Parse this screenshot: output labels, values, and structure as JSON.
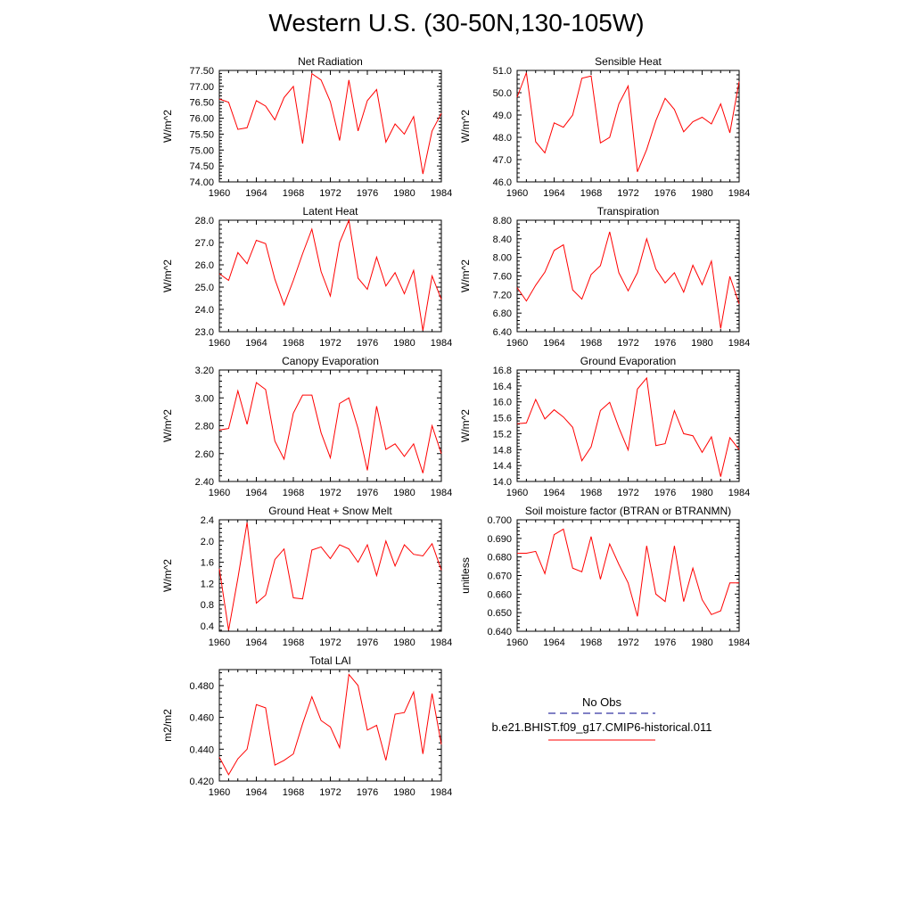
{
  "title": "Western U.S. (30-50N,130-105W)",
  "colors": {
    "model": "#ff0000",
    "obs": "#00008b",
    "axis": "#000000"
  },
  "legend": {
    "entries": [
      {
        "label": "No Obs",
        "color": "#00008b",
        "style": "dashed"
      },
      {
        "label": "b.e21.BHIST.f09_g17.CMIP6-historical.011",
        "color": "#ff0000",
        "style": "solid"
      }
    ]
  },
  "chart_data": [
    {
      "type": "line",
      "title": "Net Radiation",
      "xlabel": "",
      "ylabel": "W/m^2",
      "xlim": [
        1960,
        1984
      ],
      "ylim": [
        74.0,
        77.5
      ],
      "xticks": [
        "1960",
        "1964",
        "1968",
        "1972",
        "1976",
        "1980",
        "1984"
      ],
      "yticks": [
        "74.00",
        "74.50",
        "75.00",
        "75.50",
        "76.00",
        "76.50",
        "77.00",
        "77.50"
      ],
      "x": [
        1960,
        1961,
        1962,
        1963,
        1964,
        1965,
        1966,
        1967,
        1968,
        1969,
        1970,
        1971,
        1972,
        1973,
        1974,
        1975,
        1976,
        1977,
        1978,
        1979,
        1980,
        1981,
        1982,
        1983,
        1984
      ],
      "series": [
        {
          "values": [
            76.6,
            76.5,
            75.65,
            75.7,
            76.55,
            76.38,
            75.95,
            76.65,
            77.0,
            75.2,
            77.4,
            77.2,
            76.52,
            75.3,
            77.2,
            75.6,
            76.55,
            76.9,
            75.25,
            75.82,
            75.5,
            76.05,
            74.25,
            75.6,
            76.15
          ]
        }
      ]
    },
    {
      "type": "line",
      "title": "Sensible Heat",
      "xlabel": "",
      "ylabel": "W/m^2",
      "xlim": [
        1960,
        1984
      ],
      "ylim": [
        46.0,
        51.0
      ],
      "xticks": [
        "1960",
        "1964",
        "1968",
        "1972",
        "1976",
        "1980",
        "1984"
      ],
      "yticks": [
        "46.0",
        "47.0",
        "48.0",
        "49.0",
        "50.0",
        "51.0"
      ],
      "x": [
        1960,
        1961,
        1962,
        1963,
        1964,
        1965,
        1966,
        1967,
        1968,
        1969,
        1970,
        1971,
        1972,
        1973,
        1974,
        1975,
        1976,
        1977,
        1978,
        1979,
        1980,
        1981,
        1982,
        1983,
        1984
      ],
      "series": [
        {
          "values": [
            49.8,
            50.9,
            47.8,
            47.3,
            48.65,
            48.45,
            49.0,
            50.65,
            50.75,
            47.75,
            48.0,
            49.5,
            50.3,
            46.45,
            47.45,
            48.75,
            49.75,
            49.25,
            48.25,
            48.7,
            48.9,
            48.6,
            49.5,
            48.2,
            50.5
          ]
        }
      ]
    },
    {
      "type": "line",
      "title": "Latent Heat",
      "xlabel": "",
      "ylabel": "W/m^2",
      "xlim": [
        1960,
        1984
      ],
      "ylim": [
        23.0,
        28.0
      ],
      "xticks": [
        "1960",
        "1964",
        "1968",
        "1972",
        "1976",
        "1980",
        "1984"
      ],
      "yticks": [
        "23.0",
        "24.0",
        "25.0",
        "26.0",
        "27.0",
        "28.0"
      ],
      "x": [
        1960,
        1961,
        1962,
        1963,
        1964,
        1965,
        1966,
        1967,
        1968,
        1969,
        1970,
        1971,
        1972,
        1973,
        1974,
        1975,
        1976,
        1977,
        1978,
        1979,
        1980,
        1981,
        1982,
        1983,
        1984
      ],
      "series": [
        {
          "values": [
            25.6,
            25.3,
            26.55,
            26.05,
            27.1,
            26.95,
            25.35,
            24.2,
            25.3,
            26.5,
            27.6,
            25.7,
            24.6,
            27.0,
            28.0,
            25.4,
            24.9,
            26.35,
            25.05,
            25.65,
            24.7,
            25.75,
            23.05,
            25.5,
            24.45
          ]
        }
      ]
    },
    {
      "type": "line",
      "title": "Transpiration",
      "xlabel": "",
      "ylabel": "W/m^2",
      "xlim": [
        1960,
        1984
      ],
      "ylim": [
        6.4,
        8.8
      ],
      "xticks": [
        "1960",
        "1964",
        "1968",
        "1972",
        "1976",
        "1980",
        "1984"
      ],
      "yticks": [
        "6.40",
        "6.80",
        "7.20",
        "7.60",
        "8.00",
        "8.40",
        "8.80"
      ],
      "x": [
        1960,
        1961,
        1962,
        1963,
        1964,
        1965,
        1966,
        1967,
        1968,
        1969,
        1970,
        1971,
        1972,
        1973,
        1974,
        1975,
        1976,
        1977,
        1978,
        1979,
        1980,
        1981,
        1982,
        1983,
        1984
      ],
      "series": [
        {
          "values": [
            7.35,
            7.06,
            7.4,
            7.68,
            8.15,
            8.27,
            7.3,
            7.1,
            7.63,
            7.82,
            8.55,
            7.67,
            7.28,
            7.67,
            8.4,
            7.75,
            7.45,
            7.67,
            7.25,
            7.83,
            7.41,
            7.92,
            6.47,
            7.59,
            7.0
          ]
        }
      ]
    },
    {
      "type": "line",
      "title": "Canopy Evaporation",
      "xlabel": "",
      "ylabel": "W/m^2",
      "xlim": [
        1960,
        1984
      ],
      "ylim": [
        2.4,
        3.2
      ],
      "xticks": [
        "1960",
        "1964",
        "1968",
        "1972",
        "1976",
        "1980",
        "1984"
      ],
      "yticks": [
        "2.40",
        "2.60",
        "2.80",
        "3.00",
        "3.20"
      ],
      "x": [
        1960,
        1961,
        1962,
        1963,
        1964,
        1965,
        1966,
        1967,
        1968,
        1969,
        1970,
        1971,
        1972,
        1973,
        1974,
        1975,
        1976,
        1977,
        1978,
        1979,
        1980,
        1981,
        1982,
        1983,
        1984
      ],
      "series": [
        {
          "values": [
            2.77,
            2.78,
            3.05,
            2.81,
            3.11,
            3.06,
            2.69,
            2.56,
            2.89,
            3.02,
            3.02,
            2.75,
            2.57,
            2.96,
            3.0,
            2.78,
            2.48,
            2.94,
            2.63,
            2.67,
            2.58,
            2.67,
            2.46,
            2.8,
            2.6
          ]
        }
      ]
    },
    {
      "type": "line",
      "title": "Ground Evaporation",
      "xlabel": "",
      "ylabel": "W/m^2",
      "xlim": [
        1960,
        1984
      ],
      "ylim": [
        14.0,
        16.8
      ],
      "xticks": [
        "1960",
        "1964",
        "1968",
        "1972",
        "1976",
        "1980",
        "1984"
      ],
      "yticks": [
        "14.0",
        "14.4",
        "14.8",
        "15.2",
        "15.6",
        "16.0",
        "16.4",
        "16.8"
      ],
      "x": [
        1960,
        1961,
        1962,
        1963,
        1964,
        1965,
        1966,
        1967,
        1968,
        1969,
        1970,
        1971,
        1972,
        1973,
        1974,
        1975,
        1976,
        1977,
        1978,
        1979,
        1980,
        1981,
        1982,
        1983,
        1984
      ],
      "series": [
        {
          "values": [
            15.45,
            15.47,
            16.06,
            15.57,
            15.8,
            15.62,
            15.36,
            14.52,
            14.87,
            15.78,
            15.99,
            15.35,
            14.79,
            16.32,
            16.6,
            14.9,
            14.95,
            15.78,
            15.2,
            15.15,
            14.73,
            15.12,
            14.12,
            15.1,
            14.8
          ]
        }
      ]
    },
    {
      "type": "line",
      "title": "Ground Heat + Snow Melt",
      "xlabel": "",
      "ylabel": "W/m^2",
      "xlim": [
        1960,
        1984
      ],
      "ylim": [
        0.3,
        2.4
      ],
      "xticks": [
        "1960",
        "1964",
        "1968",
        "1972",
        "1976",
        "1980",
        "1984"
      ],
      "yticks": [
        "0.4",
        "0.8",
        "1.2",
        "1.6",
        "2.0",
        "2.4"
      ],
      "x": [
        1960,
        1961,
        1962,
        1963,
        1964,
        1965,
        1966,
        1967,
        1968,
        1969,
        1970,
        1971,
        1972,
        1973,
        1974,
        1975,
        1976,
        1977,
        1978,
        1979,
        1980,
        1981,
        1982,
        1983,
        1984
      ],
      "series": [
        {
          "values": [
            1.48,
            0.32,
            1.3,
            2.35,
            0.83,
            0.98,
            1.65,
            1.85,
            0.93,
            0.91,
            1.83,
            1.89,
            1.67,
            1.93,
            1.85,
            1.6,
            1.93,
            1.35,
            2.0,
            1.53,
            1.93,
            1.75,
            1.72,
            1.95,
            1.45
          ]
        }
      ]
    },
    {
      "type": "line",
      "title": "Soil moisture factor (BTRAN or BTRANMN)",
      "xlabel": "",
      "ylabel": "unitless",
      "xlim": [
        1960,
        1984
      ],
      "ylim": [
        0.64,
        0.7
      ],
      "xticks": [
        "1960",
        "1964",
        "1968",
        "1972",
        "1976",
        "1980",
        "1984"
      ],
      "yticks": [
        "0.640",
        "0.650",
        "0.660",
        "0.670",
        "0.680",
        "0.690",
        "0.700"
      ],
      "x": [
        1960,
        1961,
        1962,
        1963,
        1964,
        1965,
        1966,
        1967,
        1968,
        1969,
        1970,
        1971,
        1972,
        1973,
        1974,
        1975,
        1976,
        1977,
        1978,
        1979,
        1980,
        1981,
        1982,
        1983,
        1984
      ],
      "series": [
        {
          "values": [
            0.682,
            0.682,
            0.683,
            0.671,
            0.692,
            0.695,
            0.674,
            0.672,
            0.691,
            0.668,
            0.687,
            0.676,
            0.666,
            0.648,
            0.686,
            0.66,
            0.656,
            0.686,
            0.656,
            0.674,
            0.657,
            0.649,
            0.651,
            0.666,
            0.666
          ]
        }
      ]
    },
    {
      "type": "line",
      "title": "Total LAI",
      "xlabel": "",
      "ylabel": "m2/m2",
      "xlim": [
        1960,
        1984
      ],
      "ylim": [
        0.42,
        0.49
      ],
      "xticks": [
        "1960",
        "1964",
        "1968",
        "1972",
        "1976",
        "1980",
        "1984"
      ],
      "yticks": [
        "0.420",
        "0.440",
        "0.460",
        "0.480"
      ],
      "x": [
        1960,
        1961,
        1962,
        1963,
        1964,
        1965,
        1966,
        1967,
        1968,
        1969,
        1970,
        1971,
        1972,
        1973,
        1974,
        1975,
        1976,
        1977,
        1978,
        1979,
        1980,
        1981,
        1982,
        1983,
        1984
      ],
      "series": [
        {
          "values": [
            0.435,
            0.424,
            0.434,
            0.44,
            0.468,
            0.466,
            0.43,
            0.433,
            0.437,
            0.456,
            0.473,
            0.458,
            0.454,
            0.441,
            0.487,
            0.48,
            0.452,
            0.455,
            0.433,
            0.462,
            0.463,
            0.476,
            0.437,
            0.475,
            0.443
          ]
        }
      ]
    }
  ]
}
